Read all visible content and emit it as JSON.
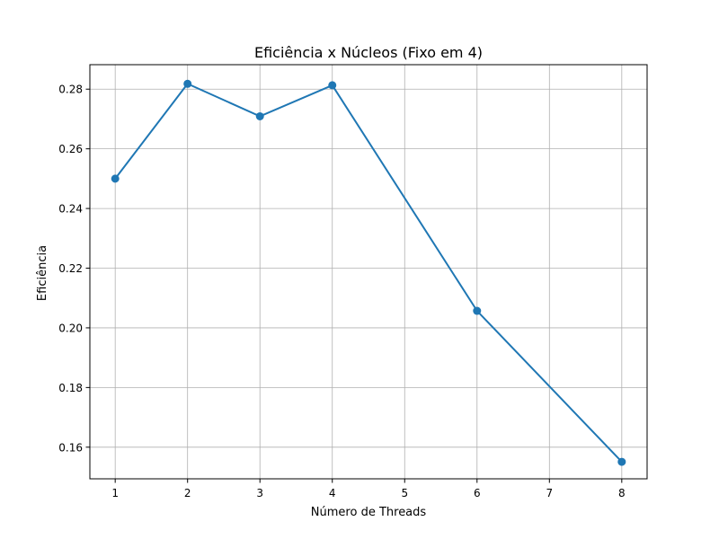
{
  "chart_data": {
    "type": "line",
    "title": "Eficiência x Núcleos (Fixo em 4)",
    "xlabel": "Número de Threads",
    "ylabel": "Eficiência",
    "x": [
      1,
      2,
      3,
      4,
      6,
      8
    ],
    "series": [
      {
        "values": [
          0.25,
          0.2818,
          0.2709,
          0.2813,
          0.2057,
          0.1551
        ]
      }
    ],
    "x_ticks": [
      "1",
      "2",
      "3",
      "4",
      "5",
      "6",
      "7",
      "8"
    ],
    "y_ticks": [
      "0.16",
      "0.18",
      "0.20",
      "0.22",
      "0.24",
      "0.26",
      "0.28"
    ],
    "xlim": [
      0.65,
      8.35
    ],
    "ylim": [
      0.1494,
      0.2882
    ],
    "grid": true,
    "markers": true,
    "colors": {
      "line": "#1f77b4",
      "grid": "#b0b0b0",
      "axes": "#000000",
      "background": "#ffffff"
    }
  }
}
